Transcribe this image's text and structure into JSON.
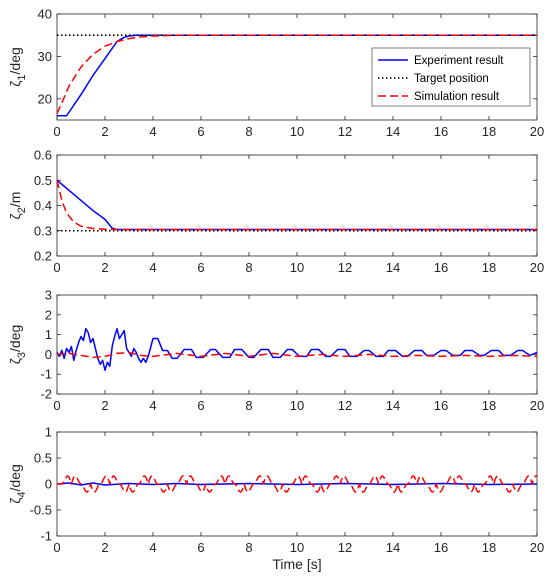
{
  "chart_data": [
    {
      "type": "line",
      "ylabel": "ζ_1/deg",
      "xlim": [
        0,
        20
      ],
      "ylim": [
        15,
        40
      ],
      "xticks": [
        0,
        2,
        4,
        6,
        8,
        10,
        12,
        14,
        16,
        18,
        20
      ],
      "yticks": [
        20,
        30,
        40
      ],
      "grid": false,
      "legend": "top-right",
      "series": [
        {
          "name": "Experiment result",
          "color": "#0000ff",
          "style": "solid",
          "x": [
            0,
            0.4,
            1.0,
            1.5,
            2.0,
            2.5,
            2.8,
            3.0,
            3.3,
            4.0,
            20
          ],
          "y": [
            16,
            16,
            21,
            25.5,
            29.5,
            33.5,
            34.5,
            34.8,
            35,
            35,
            35
          ]
        },
        {
          "name": "Target position",
          "color": "#000000",
          "style": "dotted",
          "x": [
            0,
            20
          ],
          "y": [
            35,
            35
          ]
        },
        {
          "name": "Simulation result",
          "color": "#ff0000",
          "style": "dashed",
          "x": [
            0,
            0.2,
            0.5,
            1.0,
            1.5,
            2.0,
            2.5,
            3.0,
            3.5,
            4.0,
            5.0,
            20
          ],
          "y": [
            16.5,
            19,
            23,
            27.5,
            30.5,
            32.4,
            33.5,
            34.2,
            34.6,
            34.8,
            35,
            35
          ]
        }
      ]
    },
    {
      "type": "line",
      "ylabel": "ζ_2/m",
      "xlim": [
        0,
        20
      ],
      "ylim": [
        0.2,
        0.6
      ],
      "xticks": [
        0,
        2,
        4,
        6,
        8,
        10,
        12,
        14,
        16,
        18,
        20
      ],
      "yticks": [
        0.2,
        0.3,
        0.4,
        0.5,
        0.6
      ],
      "grid": false,
      "series": [
        {
          "name": "Experiment result",
          "color": "#0000ff",
          "style": "solid",
          "x": [
            0,
            0.5,
            1.0,
            1.5,
            2.0,
            2.3,
            2.5,
            20
          ],
          "y": [
            0.5,
            0.46,
            0.42,
            0.38,
            0.345,
            0.31,
            0.305,
            0.305
          ]
        },
        {
          "name": "Target position",
          "color": "#000000",
          "style": "dotted",
          "x": [
            0,
            20
          ],
          "y": [
            0.3,
            0.3
          ]
        },
        {
          "name": "Simulation result",
          "color": "#ff0000",
          "style": "dashed",
          "x": [
            0,
            0.2,
            0.4,
            0.7,
            1.0,
            1.5,
            2.0,
            2.5,
            3.0,
            20
          ],
          "y": [
            0.5,
            0.42,
            0.37,
            0.335,
            0.318,
            0.309,
            0.306,
            0.305,
            0.305,
            0.305
          ]
        }
      ]
    },
    {
      "type": "line",
      "ylabel": "ζ_3/deg",
      "xlim": [
        0,
        20
      ],
      "ylim": [
        -2,
        3
      ],
      "xticks": [
        0,
        2,
        4,
        6,
        8,
        10,
        12,
        14,
        16,
        18,
        20
      ],
      "yticks": [
        -2,
        -1,
        0,
        1,
        2,
        3
      ],
      "grid": false,
      "series": [
        {
          "name": "Experiment result",
          "color": "#0000ff",
          "style": "solid",
          "x": [
            0,
            0.1,
            0.2,
            0.3,
            0.4,
            0.5,
            0.6,
            0.7,
            0.8,
            0.9,
            1.0,
            1.1,
            1.2,
            1.3,
            1.4,
            1.5,
            1.6,
            1.7,
            1.8,
            1.9,
            2.0,
            2.1,
            2.2,
            2.3,
            2.4,
            2.5,
            2.6,
            2.7,
            2.8,
            2.9,
            3.0,
            3.1,
            3.2,
            3.3,
            3.4,
            3.5,
            3.6,
            3.7,
            3.8,
            4.0,
            4.2,
            4.4,
            4.6,
            4.8,
            5.0,
            5.3,
            5.6,
            5.8,
            6.1,
            6.4,
            6.6,
            6.9,
            7.2,
            7.4,
            7.7,
            8.0,
            8.2,
            8.5,
            8.8,
            9.0,
            9.3,
            9.6,
            9.8,
            10.1,
            10.4,
            10.6,
            10.9,
            11.2,
            11.4,
            11.7,
            12.0,
            12.2,
            12.5,
            12.8,
            13.0,
            13.3,
            13.6,
            13.8,
            14.1,
            14.4,
            14.6,
            14.9,
            15.2,
            15.4,
            15.7,
            16.0,
            16.2,
            16.5,
            16.8,
            17.0,
            17.3,
            17.6,
            17.8,
            18.1,
            18.4,
            18.6,
            18.9,
            19.2,
            19.4,
            19.7,
            20.0
          ],
          "y": [
            0.1,
            -0.1,
            0.2,
            -0.2,
            0.3,
            0.1,
            0.4,
            -0.3,
            0.2,
            0.6,
            0.9,
            0.7,
            1.3,
            1.1,
            0.6,
            0.8,
            0.3,
            -0.2,
            -0.5,
            -0.3,
            -0.8,
            -0.4,
            -0.6,
            0.4,
            0.9,
            1.3,
            0.8,
            1.0,
            1.2,
            0.3,
            0.1,
            -0.1,
            0.3,
            0.1,
            -0.2,
            -0.4,
            -0.2,
            -0.4,
            -0.1,
            0.8,
            0.8,
            0.2,
            0.2,
            -0.2,
            -0.2,
            0.25,
            0.25,
            -0.15,
            -0.15,
            0.25,
            0.25,
            -0.15,
            -0.15,
            0.25,
            0.25,
            -0.15,
            -0.15,
            0.25,
            0.25,
            -0.15,
            -0.15,
            0.25,
            0.25,
            -0.1,
            -0.1,
            0.25,
            0.25,
            -0.1,
            -0.1,
            0.25,
            0.25,
            -0.1,
            -0.1,
            0.2,
            0.2,
            -0.1,
            -0.1,
            0.2,
            0.2,
            -0.1,
            -0.1,
            0.2,
            0.2,
            -0.05,
            -0.05,
            0.2,
            0.2,
            -0.05,
            -0.05,
            0.2,
            0.2,
            -0.05,
            -0.05,
            0.2,
            0.2,
            -0.05,
            -0.05,
            0.2,
            0.2,
            -0.05,
            0.1
          ]
        },
        {
          "name": "Simulation result",
          "color": "#ff0000",
          "style": "dashed",
          "x": [
            0,
            0.5,
            1.0,
            1.5,
            2.0,
            2.5,
            3.0,
            3.5,
            4.0,
            5,
            6,
            7,
            8,
            9,
            10,
            11,
            12,
            13,
            14,
            15,
            16,
            17,
            18,
            19,
            20
          ],
          "y": [
            0,
            0.05,
            -0.05,
            -0.15,
            -0.1,
            0.05,
            0.1,
            -0.05,
            -0.1,
            0.05,
            -0.1,
            0.05,
            -0.1,
            0.05,
            -0.1,
            0.0,
            -0.1,
            0.0,
            -0.1,
            -0.05,
            -0.1,
            -0.05,
            -0.1,
            -0.05,
            -0.1
          ]
        }
      ]
    },
    {
      "type": "line",
      "ylabel": "ζ_4/deg",
      "xlabel": "Time [s]",
      "xlim": [
        0,
        20
      ],
      "ylim": [
        -1,
        1
      ],
      "xticks": [
        0,
        2,
        4,
        6,
        8,
        10,
        12,
        14,
        16,
        18,
        20
      ],
      "yticks": [
        -1,
        -0.5,
        0,
        0.5,
        1
      ],
      "grid": false,
      "series": [
        {
          "name": "Experiment result",
          "color": "#0000ff",
          "style": "solid",
          "x": [
            0,
            0.5,
            1,
            1.5,
            2,
            3,
            4,
            5,
            6,
            8,
            10,
            12,
            14,
            16,
            18,
            20
          ],
          "y": [
            0,
            0.02,
            -0.02,
            0.02,
            -0.02,
            0.01,
            -0.01,
            0.01,
            -0.01,
            0.01,
            -0.01,
            0.01,
            -0.01,
            0.01,
            -0.01,
            0
          ]
        },
        {
          "name": "Simulation result",
          "color": "#ff0000",
          "style": "dashed",
          "osc_amp": 0.2,
          "osc_period": 1.6,
          "osc_start": 0.2,
          "x": [
            0,
            20
          ],
          "y": [
            0,
            0
          ]
        }
      ]
    }
  ]
}
